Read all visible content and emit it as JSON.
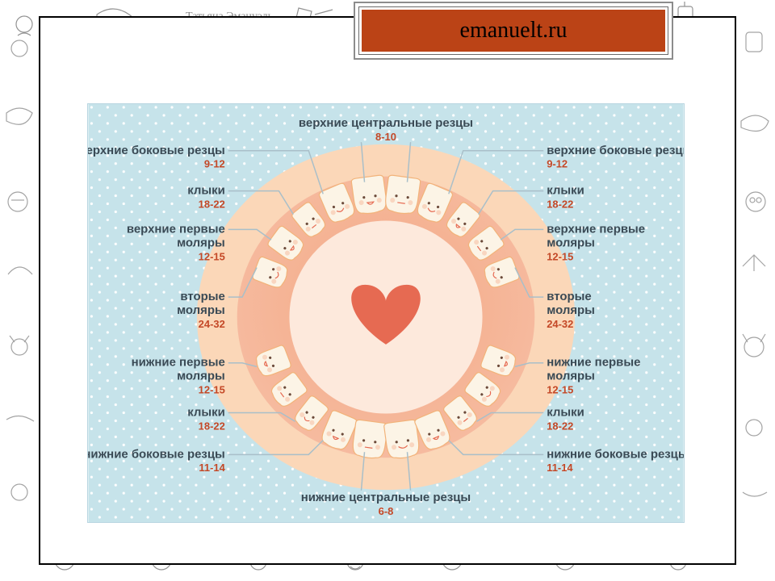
{
  "page": {
    "banner_text": "emanuelt.ru",
    "banner_bg": "#bb4316",
    "banner_text_color": "#000000"
  },
  "diagram": {
    "type": "radial-labeled-diagram",
    "bg_color": "#c6e3ea",
    "dot_color": "#ffffff",
    "mouth_outer_color": "#fbd7b8",
    "mouth_inner_a": "#f3a884",
    "mouth_inner_b": "#f6bba0",
    "mouth_center_color": "#fde9dc",
    "heart_color": "#e66a52",
    "tooth_fill": "#fcf4e6",
    "tooth_stroke": "#f2b37a",
    "tooth_blush": "#f6b79a",
    "tooth_mouth_color": "#e66a52",
    "label_title_color": "#3a4a55",
    "label_age_color": "#c44827",
    "leader_color": "#a9bfc9",
    "heading_top": "верхние центральные резцы",
    "heading_top_age": "8-10",
    "heading_bottom": "нижние центральные резцы",
    "heading_bottom_age": "6-8",
    "labels_left": [
      {
        "title": "верхние боковые резцы",
        "age": "9-12"
      },
      {
        "title": "клыки",
        "age": "18-22"
      },
      {
        "title": "верхние первые моляры",
        "age": "12-15",
        "two_line_title": [
          "верхние первые",
          "моляры"
        ]
      },
      {
        "title": "вторые моляры",
        "age": "24-32",
        "two_line_title": [
          "вторые",
          "моляры"
        ]
      },
      {
        "title": "нижние первые моляры",
        "age": "12-15",
        "two_line_title": [
          "нижние первые",
          "моляры"
        ]
      },
      {
        "title": "клыки",
        "age": "18-22"
      },
      {
        "title": "нижние боковые резцы",
        "age": "11-14"
      }
    ],
    "labels_right": [
      {
        "title": "верхние боковые резцы",
        "age": "9-12"
      },
      {
        "title": "клыки",
        "age": "18-22"
      },
      {
        "title": "верхние первые моляры",
        "age": "12-15",
        "two_line_title": [
          "верхние первые",
          "моляры"
        ]
      },
      {
        "title": "вторые моляры",
        "age": "24-32",
        "two_line_title": [
          "вторые",
          "моляры"
        ]
      },
      {
        "title": "нижние первые моляры",
        "age": "12-15",
        "two_line_title": [
          "нижние первые",
          "моляры"
        ]
      },
      {
        "title": "клыки",
        "age": "18-22"
      },
      {
        "title": "нижние боковые резцы",
        "age": "11-14"
      }
    ]
  }
}
